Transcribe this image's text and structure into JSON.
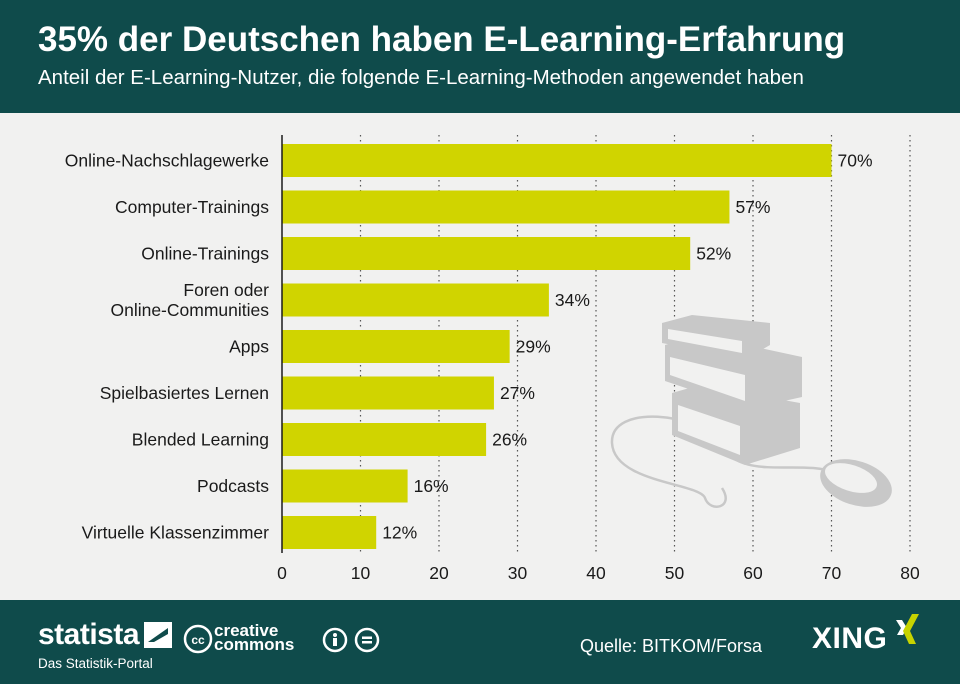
{
  "header": {
    "title": "35% der Deutschen haben E-Learning-Erfahrung",
    "subtitle": "Anteil der E-Learning-Nutzer, die folgende E-Learning-Methoden angewendet haben"
  },
  "chart_data": {
    "type": "bar",
    "orientation": "horizontal",
    "title": "35% der Deutschen haben E-Learning-Erfahrung",
    "subtitle": "Anteil der E-Learning-Nutzer, die folgende E-Learning-Methoden angewendet haben",
    "categories": [
      [
        "Online-Nachschlagewerke"
      ],
      [
        "Computer-Trainings"
      ],
      [
        "Online-Trainings"
      ],
      [
        "Foren oder",
        "Online-Communities"
      ],
      [
        "Apps"
      ],
      [
        "Spielbasiertes Lernen"
      ],
      [
        "Blended Learning"
      ],
      [
        "Podcasts"
      ],
      [
        "Virtuelle Klassenzimmer"
      ]
    ],
    "values": [
      70,
      57,
      52,
      34,
      29,
      27,
      26,
      16,
      12
    ],
    "value_labels": [
      "70%",
      "57%",
      "52%",
      "34%",
      "29%",
      "27%",
      "26%",
      "16%",
      "12%"
    ],
    "xlim": [
      0,
      80
    ],
    "xticks": [
      0,
      10,
      20,
      30,
      40,
      50,
      60,
      70,
      80
    ],
    "xlabel": "",
    "ylabel": "",
    "grid": "vertical dotted",
    "bar_color": "#d0d400"
  },
  "footer": {
    "brand": "statista",
    "brand_sub": "Das Statistik-Portal",
    "license_line1": "creative",
    "license_line2": "commons",
    "source": "Quelle: BITKOM/Forsa",
    "partner": "XING"
  },
  "colors": {
    "header_bg": "#0f4b4b",
    "plot_bg": "#f1f1f0",
    "bar": "#d0d400",
    "illustration": "#c8c8c8"
  },
  "decoration": {
    "illustration": "books-and-mouse-icon"
  }
}
